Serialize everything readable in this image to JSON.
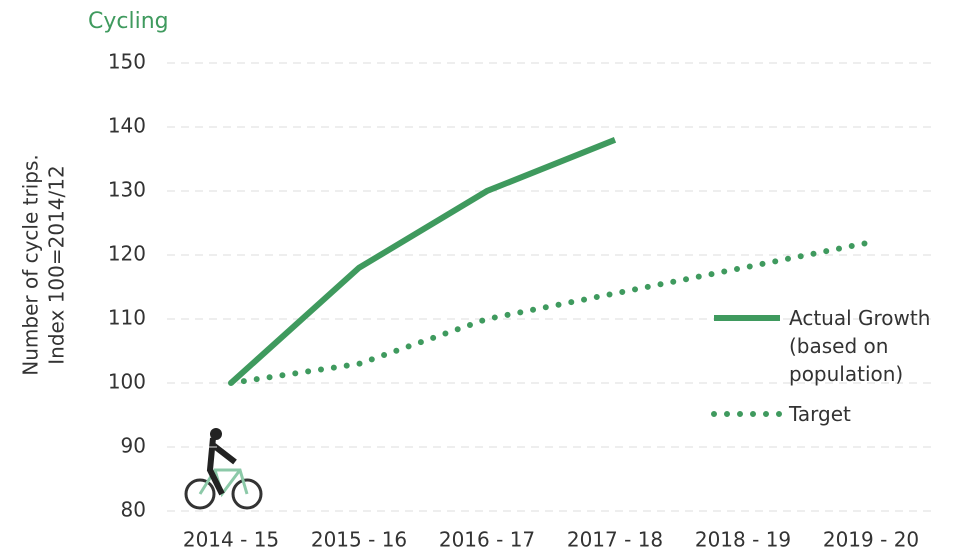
{
  "chart_data": {
    "type": "line",
    "title": "Cycling",
    "ylabel": [
      "Number of cycle trips.",
      "Index 100=2014/12"
    ],
    "categories": [
      "2014 - 15",
      "2015 - 16",
      "2016 - 17",
      "2017 - 18",
      "2018 - 19",
      "2019 - 20"
    ],
    "series": [
      {
        "name": "Actual Growth (based on population)",
        "color": "#3f9a5e",
        "style": "solid",
        "values": [
          100,
          118,
          130,
          138,
          null,
          null
        ]
      },
      {
        "name": "Target",
        "color": "#3f9a5e",
        "style": "dotted",
        "values": [
          100,
          103,
          110,
          114,
          118,
          122
        ]
      }
    ],
    "ylim": [
      80,
      150
    ],
    "yticks": [
      80,
      90,
      100,
      110,
      120,
      130,
      140,
      150
    ],
    "grid": true,
    "legend": "right"
  }
}
